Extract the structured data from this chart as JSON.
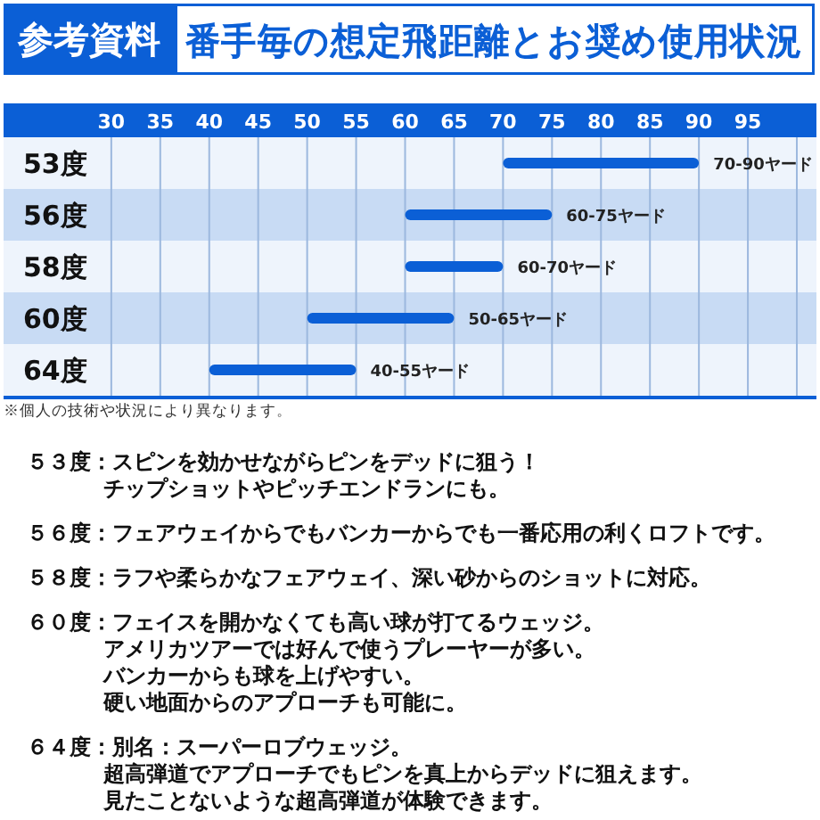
{
  "chart_data": {
    "type": "bar",
    "orientation": "horizontal",
    "title": "番手毎の想定飛距離とお奨め使用状況",
    "categories": [
      "53度",
      "56度",
      "58度",
      "60度",
      "64度"
    ],
    "base": [
      70,
      60,
      60,
      50,
      40
    ],
    "values": [
      20,
      15,
      10,
      15,
      15
    ],
    "value_labels": [
      "70-90ヤード",
      "60-75ヤード",
      "60-70ヤード",
      "50-65ヤード",
      "40-55ヤード"
    ],
    "color": "#0b5fd6",
    "xlim": [
      19,
      102
    ],
    "xticks": [
      30,
      35,
      40,
      45,
      50,
      55,
      60,
      65,
      70,
      75,
      80,
      85,
      90,
      95,
      {
        "value": 100,
        "label": null
      }
    ],
    "grid": "x",
    "annotations": [
      "参考資料",
      "※個人の技術や状況により異なります。",
      "５３度：スピンを効かせながらピンをデッドに狙う！チップショットやピッチエンドランにも。",
      "５６度：フェアウェイからでもバンカーからでも一番応用の利くロフトです。",
      "５８度：ラフや柔らかなフェアウェイ、深い砂からのショットに対応。",
      "６０度：フェイスを開かなくても高い球が打てるウェッジ。アメリカツアーでは好んで使うプレーヤーが多い。バンカーからも球を上げやすい。硬い地面からのアプローチも可能に。",
      "６４度：別名：スーパーロブウェッジ。超高弾道でアプローチでもピンを真上からデッドに狙えます。見たことないような超高弾道が体験できます。"
    ]
  }
}
